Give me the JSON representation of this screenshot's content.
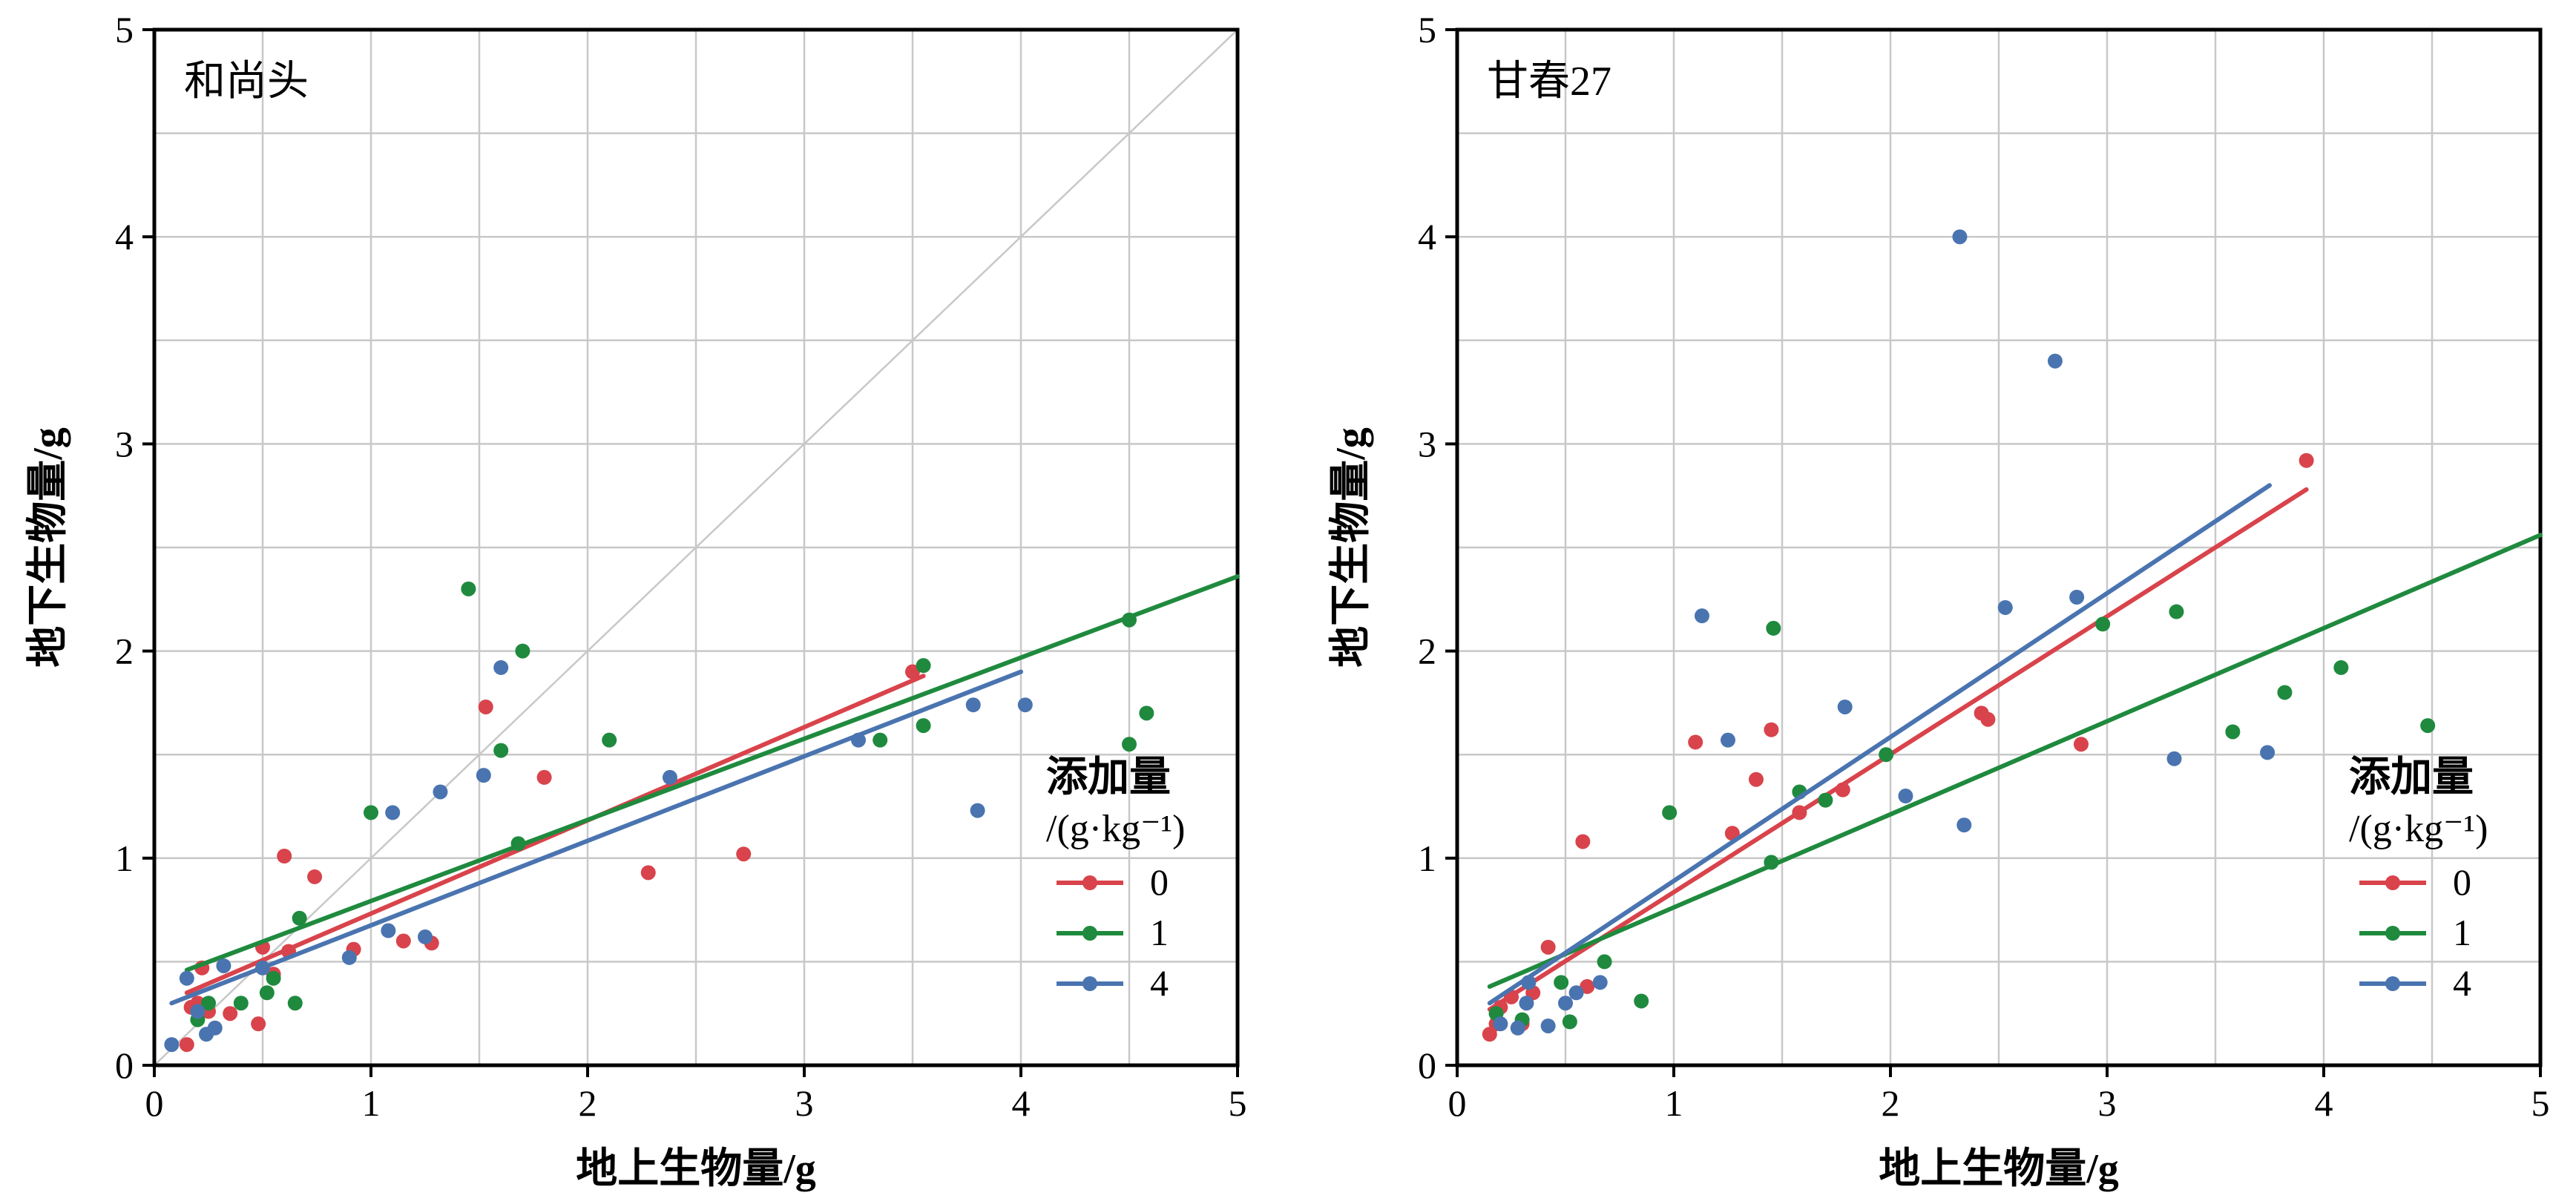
{
  "chart_data": [
    {
      "type": "scatter",
      "title": "和尚头",
      "xlabel": "地上生物量/g",
      "ylabel": "地下生物量/g",
      "xlim": [
        0,
        5
      ],
      "ylim": [
        0,
        5
      ],
      "xticks": [
        "0",
        "1",
        "2",
        "3",
        "4",
        "5"
      ],
      "yticks": [
        "0",
        "1",
        "2",
        "3",
        "4",
        "5"
      ],
      "grid": true,
      "reference_line": {
        "style": "1:1 diagonal",
        "color": "#c8c8c8"
      },
      "legend": {
        "title_line1": "添加量",
        "title_line2": "/(g·kg⁻¹)",
        "placement": "lower-right"
      },
      "series": [
        {
          "name": "0",
          "color": "#d9434b",
          "points": [
            [
              0.15,
              0.1
            ],
            [
              0.17,
              0.28
            ],
            [
              0.2,
              0.3
            ],
            [
              0.22,
              0.47
            ],
            [
              0.25,
              0.26
            ],
            [
              0.35,
              0.25
            ],
            [
              0.48,
              0.2
            ],
            [
              0.5,
              0.57
            ],
            [
              0.55,
              0.44
            ],
            [
              0.6,
              1.01
            ],
            [
              0.62,
              0.55
            ],
            [
              0.74,
              0.91
            ],
            [
              0.92,
              0.56
            ],
            [
              1.15,
              0.6
            ],
            [
              1.28,
              0.59
            ],
            [
              1.53,
              1.73
            ],
            [
              1.8,
              1.39
            ],
            [
              2.28,
              0.93
            ],
            [
              2.72,
              1.02
            ],
            [
              3.5,
              1.9
            ]
          ],
          "fit": {
            "x": [
              0.15,
              3.55
            ],
            "y": [
              0.35,
              1.88
            ]
          }
        },
        {
          "name": "1",
          "color": "#1f8a3e",
          "points": [
            [
              0.2,
              0.22
            ],
            [
              0.25,
              0.3
            ],
            [
              0.4,
              0.3
            ],
            [
              0.52,
              0.35
            ],
            [
              0.55,
              0.42
            ],
            [
              0.65,
              0.3
            ],
            [
              0.67,
              0.71
            ],
            [
              1.0,
              1.22
            ],
            [
              1.45,
              2.3
            ],
            [
              1.6,
              1.52
            ],
            [
              1.68,
              1.07
            ],
            [
              1.7,
              2.0
            ],
            [
              2.1,
              1.57
            ],
            [
              3.35,
              1.57
            ],
            [
              3.55,
              1.93
            ],
            [
              3.55,
              1.64
            ],
            [
              4.5,
              1.55
            ],
            [
              4.5,
              2.15
            ],
            [
              4.58,
              1.7
            ]
          ],
          "fit": {
            "x": [
              0.15,
              5.0
            ],
            "y": [
              0.46,
              2.36
            ]
          }
        },
        {
          "name": "4",
          "color": "#4a74b0",
          "points": [
            [
              0.08,
              0.1
            ],
            [
              0.15,
              0.42
            ],
            [
              0.2,
              0.26
            ],
            [
              0.24,
              0.15
            ],
            [
              0.28,
              0.18
            ],
            [
              0.32,
              0.48
            ],
            [
              0.5,
              0.47
            ],
            [
              0.9,
              0.52
            ],
            [
              1.08,
              0.65
            ],
            [
              1.1,
              1.22
            ],
            [
              1.25,
              0.62
            ],
            [
              1.32,
              1.32
            ],
            [
              1.52,
              1.4
            ],
            [
              1.6,
              1.92
            ],
            [
              2.38,
              1.39
            ],
            [
              3.25,
              1.57
            ],
            [
              3.78,
              1.74
            ],
            [
              3.8,
              1.23
            ],
            [
              4.02,
              1.74
            ]
          ],
          "fit": {
            "x": [
              0.08,
              4.0
            ],
            "y": [
              0.3,
              1.9
            ]
          }
        }
      ]
    },
    {
      "type": "scatter",
      "title": "甘春27",
      "xlabel": "地上生物量/g",
      "ylabel": "地下生物量/g",
      "xlim": [
        0,
        5
      ],
      "ylim": [
        0,
        5
      ],
      "xticks": [
        "0",
        "1",
        "2",
        "3",
        "4",
        "5"
      ],
      "yticks": [
        "0",
        "1",
        "2",
        "3",
        "4",
        "5"
      ],
      "grid": true,
      "legend": {
        "title_line1": "添加量",
        "title_line2": "/(g·kg⁻¹)",
        "placement": "lower-right"
      },
      "series": [
        {
          "name": "0",
          "color": "#d9434b",
          "points": [
            [
              0.15,
              0.15
            ],
            [
              0.18,
              0.2
            ],
            [
              0.2,
              0.28
            ],
            [
              0.25,
              0.33
            ],
            [
              0.3,
              0.2
            ],
            [
              0.35,
              0.35
            ],
            [
              0.42,
              0.57
            ],
            [
              0.58,
              1.08
            ],
            [
              0.6,
              0.38
            ],
            [
              1.1,
              1.56
            ],
            [
              1.27,
              1.12
            ],
            [
              1.38,
              1.38
            ],
            [
              1.45,
              1.62
            ],
            [
              1.58,
              1.22
            ],
            [
              1.78,
              1.33
            ],
            [
              2.42,
              1.7
            ],
            [
              2.45,
              1.67
            ],
            [
              2.88,
              1.55
            ],
            [
              3.92,
              2.92
            ]
          ],
          "fit": {
            "x": [
              0.15,
              3.92
            ],
            "y": [
              0.27,
              2.78
            ]
          }
        },
        {
          "name": "1",
          "color": "#1f8a3e",
          "points": [
            [
              0.18,
              0.25
            ],
            [
              0.3,
              0.22
            ],
            [
              0.48,
              0.4
            ],
            [
              0.52,
              0.21
            ],
            [
              0.68,
              0.5
            ],
            [
              0.85,
              0.31
            ],
            [
              0.98,
              1.22
            ],
            [
              1.45,
              0.98
            ],
            [
              1.46,
              2.11
            ],
            [
              1.58,
              1.32
            ],
            [
              1.7,
              1.28
            ],
            [
              1.98,
              1.5
            ],
            [
              2.98,
              2.13
            ],
            [
              3.32,
              2.19
            ],
            [
              3.58,
              1.61
            ],
            [
              3.82,
              1.8
            ],
            [
              4.08,
              1.92
            ],
            [
              4.48,
              1.64
            ]
          ],
          "fit": {
            "x": [
              0.15,
              5.0
            ],
            "y": [
              0.38,
              2.56
            ]
          }
        },
        {
          "name": "4",
          "color": "#4a74b0",
          "points": [
            [
              0.2,
              0.2
            ],
            [
              0.28,
              0.18
            ],
            [
              0.32,
              0.3
            ],
            [
              0.33,
              0.4
            ],
            [
              0.42,
              0.19
            ],
            [
              0.5,
              0.3
            ],
            [
              0.55,
              0.35
            ],
            [
              0.66,
              0.4
            ],
            [
              1.13,
              2.17
            ],
            [
              1.25,
              1.57
            ],
            [
              1.79,
              1.73
            ],
            [
              2.07,
              1.3
            ],
            [
              2.32,
              4.0
            ],
            [
              2.34,
              1.16
            ],
            [
              2.53,
              2.21
            ],
            [
              2.76,
              3.4
            ],
            [
              2.86,
              2.26
            ],
            [
              3.31,
              1.48
            ],
            [
              3.74,
              1.51
            ]
          ],
          "fit": {
            "x": [
              0.15,
              3.75
            ],
            "y": [
              0.3,
              2.8
            ]
          }
        }
      ]
    }
  ]
}
